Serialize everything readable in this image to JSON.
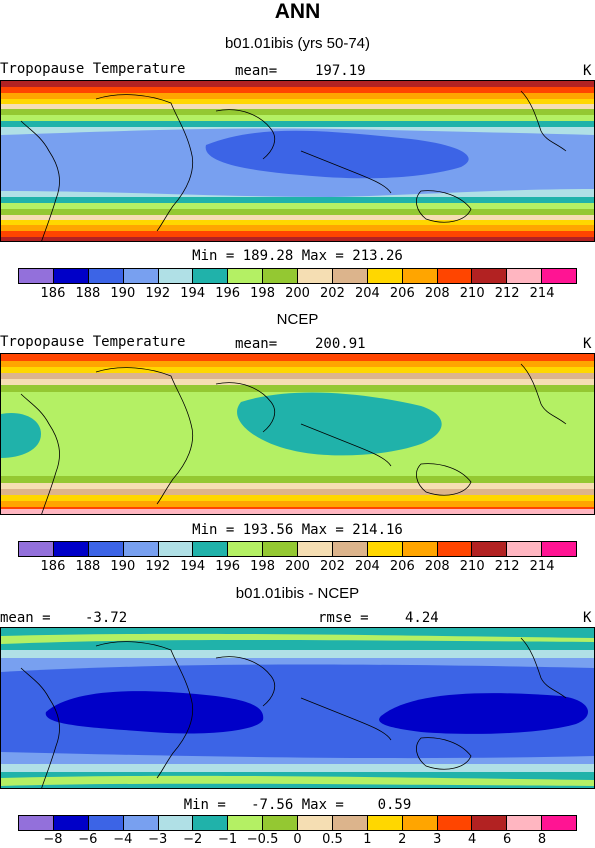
{
  "figure": {
    "title": "ANN"
  },
  "panels": [
    {
      "title": "b01.01ibis (yrs 50-74)",
      "field_label": "Tropopause Temperature",
      "stat_label": "mean=",
      "stat_value": "197.19",
      "units": "K",
      "min_max": "Min = 189.28 Max = 213.26",
      "colorbar_labels": [
        "186",
        "188",
        "190",
        "192",
        "194",
        "196",
        "198",
        "200",
        "202",
        "204",
        "206",
        "208",
        "210",
        "212",
        "214"
      ]
    },
    {
      "title": "NCEP",
      "field_label": "Tropopause Temperature",
      "stat_label": "mean=",
      "stat_value": "200.91",
      "units": "K",
      "min_max": "Min = 193.56 Max = 214.16",
      "colorbar_labels": [
        "186",
        "188",
        "190",
        "192",
        "194",
        "196",
        "198",
        "200",
        "202",
        "204",
        "206",
        "208",
        "210",
        "212",
        "214"
      ]
    },
    {
      "title": "b01.01ibis - NCEP",
      "stat_label": "mean =",
      "stat_value": "-3.72",
      "rmse_label": "rmse =",
      "rmse_value": "4.24",
      "units": "K",
      "min_max": "Min =   -7.56 Max =    0.59",
      "colorbar_labels": [
        "−8",
        "−6",
        "−4",
        "−3",
        "−2",
        "−1",
        "−0.5",
        "0",
        "0.5",
        "1",
        "2",
        "3",
        "4",
        "6",
        "8"
      ]
    }
  ],
  "colorbar_colors": [
    "#9370db",
    "#0000c8",
    "#3c64e6",
    "#78a0f0",
    "#b0e0e6",
    "#20b2aa",
    "#b4f064",
    "#94c832",
    "#f5deb3",
    "#dcb48c",
    "#ffd700",
    "#ffa500",
    "#ff4500",
    "#b22222",
    "#ffb6c1",
    "#ff1493"
  ]
}
